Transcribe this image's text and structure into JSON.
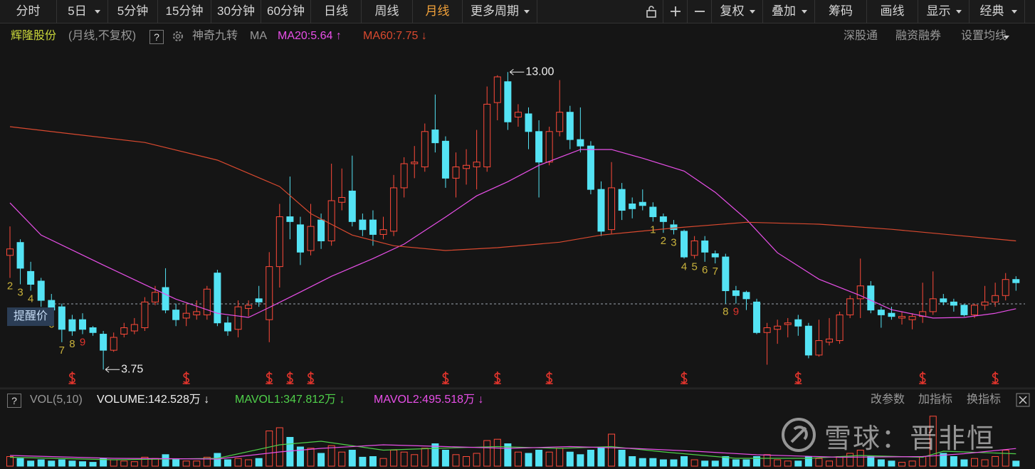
{
  "toolbar": {
    "left": [
      {
        "label": "分时"
      },
      {
        "label": "5日",
        "dropdown": true
      },
      {
        "label": "5分钟"
      },
      {
        "label": "15分钟"
      },
      {
        "label": "30分钟"
      },
      {
        "label": "60分钟"
      },
      {
        "label": "日线"
      },
      {
        "label": "周线"
      },
      {
        "label": "月线",
        "active": true
      },
      {
        "label": "更多周期",
        "dropdown": true
      }
    ],
    "right": [
      {
        "label": "复权",
        "dropdown": true
      },
      {
        "label": "叠加",
        "dropdown": true
      },
      {
        "label": "筹码"
      },
      {
        "label": "画线"
      },
      {
        "label": "显示",
        "dropdown": true
      },
      {
        "label": "经典",
        "dropdown": true
      }
    ]
  },
  "header": {
    "stock": "辉隆股份",
    "period": "(月线,不复权)",
    "help": "?",
    "indicator": "神奇九转",
    "ma": "MA",
    "links": [
      "深股通",
      "融资融券"
    ],
    "settings": "设置均线"
  },
  "volume_header": {
    "help": "?",
    "name": "VOL(5,10)",
    "actions": [
      "改参数",
      "加指标",
      "换指标"
    ]
  },
  "watermark": "雪球：晋非恒",
  "chart_data": {
    "type": "candlestick",
    "up_color": "#ff4a3a",
    "down_color": "#54e3f4",
    "ylim": [
      3.18,
      13.58
    ],
    "vol_ylim": [
      0,
      1500
    ],
    "open": [
      7.3,
      7.7,
      6.8,
      6.5,
      5.9,
      5.7,
      5.3,
      5.3,
      5.05,
      4.85,
      4.35,
      4.85,
      4.95,
      5.05,
      5.85,
      6.3,
      5.6,
      5.35,
      5.45,
      5.45,
      6.75,
      5.2,
      5.0,
      5.65,
      5.95,
      5.3,
      6.95,
      8.5,
      8.25,
      7.45,
      8.4,
      7.75,
      8.95,
      9.3,
      8.4,
      8.4,
      7.95,
      8.05,
      9.4,
      10.15,
      10.05,
      11.2,
      10.85,
      9.7,
      10.0,
      10.05,
      10.05,
      12.05,
      12.7,
      11.6,
      11.7,
      11.15,
      10.2,
      11.15,
      11.75,
      10.9,
      10.7,
      9.35,
      8.1,
      9.35,
      8.9,
      8.95,
      8.8,
      8.5,
      8.25,
      8.05,
      7.3,
      7.75,
      7.35,
      7.25,
      6.2,
      6.15,
      5.85,
      4.9,
      5.0,
      5.15,
      5.3,
      5.1,
      4.2,
      4.6,
      4.65,
      5.45,
      5.95,
      6.35,
      5.6,
      5.5,
      5.35,
      5.3,
      5.4,
      5.55,
      5.95,
      5.85,
      5.75,
      5.45,
      5.75,
      5.85,
      6.05,
      6.55
    ],
    "high": [
      8.2,
      7.8,
      7.1,
      6.6,
      6.1,
      5.8,
      5.45,
      5.5,
      5.1,
      4.95,
      4.9,
      5.2,
      5.35,
      6.0,
      6.35,
      6.9,
      5.8,
      5.8,
      5.9,
      6.35,
      6.85,
      5.4,
      5.9,
      5.9,
      6.35,
      7.4,
      8.9,
      9.75,
      8.5,
      8.9,
      8.6,
      10.15,
      10.0,
      10.4,
      8.6,
      8.7,
      8.5,
      9.8,
      10.35,
      10.7,
      11.4,
      12.3,
      11.0,
      10.5,
      10.6,
      11.2,
      12.55,
      12.9,
      13.0,
      12.0,
      11.9,
      11.5,
      11.3,
      12.75,
      11.95,
      11.9,
      10.85,
      9.6,
      10.2,
      9.55,
      9.1,
      9.35,
      8.95,
      8.6,
      8.4,
      8.1,
      7.9,
      7.9,
      7.45,
      7.35,
      6.35,
      6.2,
      5.95,
      5.2,
      5.3,
      5.35,
      5.45,
      5.2,
      5.3,
      5.35,
      5.55,
      6.05,
      7.2,
      6.5,
      5.7,
      5.7,
      5.55,
      5.5,
      6.45,
      6.8,
      6.1,
      5.95,
      5.8,
      5.8,
      6.35,
      6.45,
      6.75,
      6.65
    ],
    "low": [
      6.6,
      6.4,
      6.2,
      5.7,
      5.4,
      4.6,
      4.8,
      4.85,
      4.8,
      3.75,
      4.3,
      4.75,
      4.85,
      4.95,
      5.75,
      5.5,
      5.1,
      5.1,
      5.3,
      5.3,
      5.1,
      4.8,
      4.75,
      5.4,
      5.7,
      4.6,
      6.3,
      7.8,
      7.0,
      7.3,
      7.5,
      7.6,
      8.7,
      8.2,
      7.9,
      7.6,
      7.8,
      7.9,
      9.1,
      9.7,
      9.9,
      10.5,
      9.4,
      9.1,
      9.5,
      9.35,
      9.9,
      11.5,
      11.2,
      11.3,
      10.6,
      9.1,
      10.1,
      11.0,
      10.6,
      10.5,
      9.2,
      7.9,
      7.95,
      8.4,
      8.45,
      8.7,
      8.35,
      8.0,
      7.95,
      7.2,
      7.2,
      7.1,
      7.05,
      5.8,
      5.8,
      5.6,
      4.85,
      3.9,
      4.55,
      4.75,
      4.8,
      4.1,
      4.15,
      4.5,
      4.55,
      5.35,
      5.35,
      5.5,
      5.05,
      5.3,
      5.15,
      5.0,
      5.2,
      5.45,
      5.75,
      5.55,
      5.4,
      5.35,
      5.6,
      5.7,
      5.9,
      6.2
    ],
    "close": [
      7.5,
      6.9,
      6.4,
      5.9,
      5.6,
      5.0,
      4.95,
      5.0,
      4.9,
      4.35,
      4.75,
      5.05,
      5.15,
      5.85,
      6.15,
      5.6,
      5.3,
      5.5,
      5.55,
      6.25,
      5.2,
      4.95,
      5.7,
      5.75,
      5.85,
      6.95,
      8.5,
      8.35,
      7.4,
      8.2,
      7.75,
      9.0,
      9.1,
      8.35,
      8.1,
      7.95,
      8.1,
      9.4,
      10.15,
      10.2,
      11.15,
      10.8,
      9.7,
      10.05,
      10.1,
      10.2,
      12.0,
      12.85,
      11.45,
      11.75,
      11.15,
      10.2,
      11.15,
      11.75,
      10.9,
      10.7,
      9.35,
      8.05,
      9.4,
      8.7,
      8.75,
      8.85,
      8.5,
      8.35,
      8.1,
      7.25,
      7.75,
      7.4,
      7.25,
      6.2,
      6.05,
      5.95,
      4.9,
      5.05,
      5.1,
      5.2,
      5.1,
      4.2,
      4.65,
      4.7,
      5.45,
      5.95,
      6.35,
      5.6,
      5.45,
      5.4,
      5.4,
      5.4,
      5.55,
      5.95,
      5.85,
      5.75,
      5.45,
      5.75,
      5.85,
      6.05,
      6.55,
      6.45
    ],
    "volume": [
      270,
      216,
      144,
      180,
      144,
      180,
      144,
      126,
      108,
      216,
      180,
      144,
      126,
      252,
      216,
      324,
      180,
      144,
      144,
      252,
      360,
      180,
      216,
      180,
      216,
      990,
      1080,
      810,
      540,
      504,
      360,
      576,
      396,
      450,
      252,
      270,
      216,
      450,
      396,
      324,
      504,
      630,
      450,
      324,
      270,
      360,
      720,
      756,
      630,
      396,
      360,
      450,
      396,
      504,
      396,
      324,
      450,
      540,
      900,
      450,
      270,
      216,
      216,
      180,
      180,
      270,
      180,
      144,
      144,
      270,
      180,
      180,
      270,
      324,
      180,
      144,
      144,
      270,
      216,
      144,
      270,
      360,
      450,
      270,
      180,
      144,
      108,
      144,
      270,
      1404,
      360,
      270,
      180,
      216,
      180,
      270,
      450,
      142.528
    ],
    "volume_label": "VOLUME:142.528万 ↓",
    "ma": [
      {
        "name": "MA20",
        "label": "MA20:5.64 ↑",
        "color": "#e84fe8",
        "x": [
          0,
          3,
          9,
          13,
          16,
          20,
          23,
          25,
          28,
          31,
          35,
          38,
          42,
          45,
          48,
          51,
          55,
          58,
          61,
          65,
          68,
          71,
          74,
          78,
          82,
          85,
          89,
          92,
          95,
          97
        ],
        "values": [
          8.93,
          7.93,
          7.0,
          6.39,
          5.94,
          5.5,
          5.37,
          5.68,
          6.16,
          6.65,
          7.2,
          7.65,
          8.49,
          9.15,
          9.59,
          10.1,
          10.59,
          10.59,
          10.32,
          9.92,
          9.26,
          8.42,
          7.38,
          6.56,
          6.05,
          5.61,
          5.35,
          5.37,
          5.5,
          5.64
        ]
      },
      {
        "name": "MA60",
        "label": "MA60:7.75 ↓",
        "color": "#d9492f",
        "x": [
          0,
          13,
          20,
          26,
          29,
          33,
          37,
          42,
          47,
          53,
          57,
          64,
          71,
          78,
          85,
          91,
          97
        ],
        "values": [
          11.3,
          10.81,
          10.26,
          9.44,
          8.6,
          7.93,
          7.6,
          7.45,
          7.54,
          7.71,
          7.93,
          8.15,
          8.33,
          8.27,
          8.11,
          7.93,
          7.75
        ]
      }
    ],
    "mavol": [
      {
        "name": "MAVOL1",
        "label": "MAVOL1:347.812万 ↓",
        "color": "#4fd04a",
        "x": [
          0,
          10,
          20,
          26,
          30,
          36,
          41,
          47,
          53,
          58,
          63,
          70,
          77,
          82,
          88,
          90,
          97
        ],
        "values": [
          250,
          180,
          220,
          600,
          700,
          450,
          500,
          550,
          500,
          550,
          400,
          220,
          220,
          300,
          250,
          420,
          347.812
        ]
      },
      {
        "name": "MAVOL2",
        "label": "MAVOL2:495.518万 ↓",
        "color": "#e84fe8",
        "x": [
          0,
          10,
          20,
          26,
          30,
          36,
          42,
          48,
          54,
          60,
          66,
          72,
          80,
          88,
          92,
          97
        ],
        "values": [
          300,
          220,
          200,
          400,
          500,
          600,
          550,
          500,
          550,
          500,
          420,
          320,
          250,
          270,
          350,
          495.518
        ]
      }
    ],
    "high_label": {
      "index": 48,
      "label": "13.00"
    },
    "low_label": {
      "index": 9,
      "label": "3.75"
    },
    "alert_price": {
      "label": "提醒价",
      "value": 5.79
    },
    "nine_turn": {
      "color": "#c9b23c",
      "nine_color": "#e0342c",
      "points": [
        {
          "index": 0,
          "count": 2
        },
        {
          "index": 1,
          "count": 3
        },
        {
          "index": 2,
          "count": 4
        },
        {
          "index": 3,
          "count": 5
        },
        {
          "index": 4,
          "count": 6
        },
        {
          "index": 5,
          "count": 7
        },
        {
          "index": 6,
          "count": 8
        },
        {
          "index": 7,
          "count": 9
        },
        {
          "index": 62,
          "count": 1
        },
        {
          "index": 63,
          "count": 2
        },
        {
          "index": 64,
          "count": 3
        },
        {
          "index": 65,
          "count": 4
        },
        {
          "index": 66,
          "count": 5
        },
        {
          "index": 67,
          "count": 6
        },
        {
          "index": 68,
          "count": 7
        },
        {
          "index": 69,
          "count": 8
        },
        {
          "index": 70,
          "count": 9
        }
      ]
    },
    "event_markers": {
      "color": "#e0342c",
      "indices": [
        6,
        17,
        25,
        27,
        29,
        42,
        47,
        52,
        65,
        76,
        88,
        95
      ]
    }
  }
}
